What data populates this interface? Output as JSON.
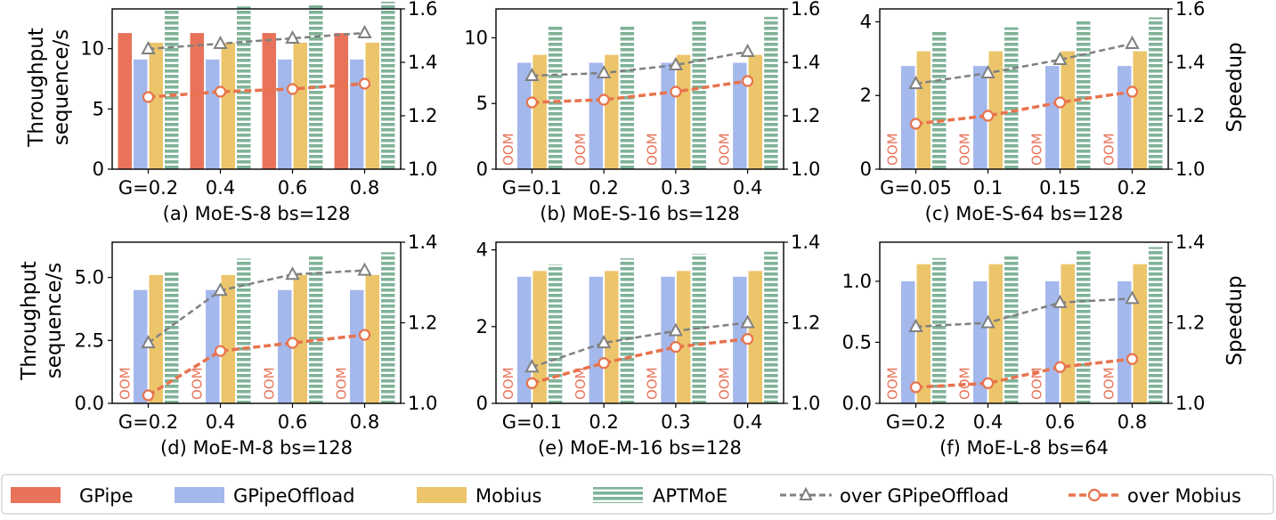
{
  "y_axis_label_lines": [
    "Throughput",
    "sequence/s"
  ],
  "right_axis_label": "Speedup",
  "oom_label": "OOM",
  "legend": [
    {
      "key": "gpipe",
      "label": "GPipe"
    },
    {
      "key": "gpipeoffload",
      "label": "GPipeOffload"
    },
    {
      "key": "mobius",
      "label": "Mobius"
    },
    {
      "key": "aptmoe",
      "label": "APTMoE"
    },
    {
      "key": "over_gpipeoffload",
      "label": "over GPipeOffload"
    },
    {
      "key": "over_mobius",
      "label": "over Mobius"
    }
  ],
  "colors": {
    "gpipe": "#e8735a",
    "gpipeoffload": "#a4b8ec",
    "mobius": "#ecc56b",
    "aptmoe": "#7fb398",
    "over_gpipeoffload": "#808080",
    "over_mobius": "#e8734d"
  },
  "chart_data": [
    {
      "type": "bar",
      "title": "(a) MoE-S-8 bs=128",
      "categories": [
        "G=0.2",
        "0.4",
        "0.6",
        "0.8"
      ],
      "ylim": [
        0,
        13.3
      ],
      "yticks": [
        0,
        5,
        10
      ],
      "y2lim": [
        1.0,
        1.6
      ],
      "y2ticks": [
        "1.0",
        "1.2",
        "1.4",
        "1.6"
      ],
      "y2tick_values": [
        1.0,
        1.2,
        1.4,
        1.6
      ],
      "series": [
        {
          "name": "GPipe",
          "values": [
            11.3,
            11.3,
            11.3,
            11.3
          ]
        },
        {
          "name": "GPipeOffload",
          "values": [
            9.1,
            9.1,
            9.1,
            9.1
          ]
        },
        {
          "name": "Mobius",
          "values": [
            10.5,
            10.5,
            10.5,
            10.5
          ]
        },
        {
          "name": "APTMoE",
          "values": [
            13.3,
            13.5,
            13.7,
            13.9
          ]
        }
      ],
      "speedup": [
        {
          "name": "over GPipeOffload",
          "values": [
            1.45,
            1.47,
            1.49,
            1.51
          ]
        },
        {
          "name": "over Mobius",
          "values": [
            1.27,
            1.29,
            1.3,
            1.32
          ]
        }
      ],
      "oom": [
        false,
        false,
        false,
        false
      ]
    },
    {
      "type": "bar",
      "title": "(b) MoE-S-16 bs=128",
      "categories": [
        "G=0.1",
        "0.2",
        "0.3",
        "0.4"
      ],
      "ylim": [
        0,
        12.2
      ],
      "yticks": [
        0,
        5,
        10
      ],
      "y2lim": [
        1.0,
        1.6
      ],
      "y2ticks": [
        "1.0",
        "1.2",
        "1.4",
        "1.6"
      ],
      "y2tick_values": [
        1.0,
        1.2,
        1.4,
        1.6
      ],
      "series": [
        {
          "name": "GPipe",
          "values": [
            null,
            null,
            null,
            null
          ]
        },
        {
          "name": "GPipeOffload",
          "values": [
            8.1,
            8.1,
            8.1,
            8.1
          ]
        },
        {
          "name": "Mobius",
          "values": [
            8.7,
            8.7,
            8.7,
            8.7
          ]
        },
        {
          "name": "APTMoE",
          "values": [
            11.0,
            11.0,
            11.3,
            11.6
          ]
        }
      ],
      "speedup": [
        {
          "name": "over GPipeOffload",
          "values": [
            1.35,
            1.36,
            1.39,
            1.44
          ]
        },
        {
          "name": "over Mobius",
          "values": [
            1.25,
            1.26,
            1.29,
            1.33
          ]
        }
      ],
      "oom": [
        true,
        true,
        true,
        true
      ]
    },
    {
      "type": "bar",
      "title": "(c) MoE-S-64 bs=128",
      "categories": [
        "G=0.05",
        "0.1",
        "0.15",
        "0.2"
      ],
      "ylim": [
        0,
        4.35
      ],
      "yticks": [
        0,
        2,
        4
      ],
      "y2lim": [
        1.0,
        1.6
      ],
      "y2ticks": [
        "1.0",
        "1.2",
        "1.4",
        "1.6"
      ],
      "y2tick_values": [
        1.0,
        1.2,
        1.4,
        1.6
      ],
      "series": [
        {
          "name": "GPipe",
          "values": [
            null,
            null,
            null,
            null
          ]
        },
        {
          "name": "GPipeOffload",
          "values": [
            2.8,
            2.8,
            2.8,
            2.8
          ]
        },
        {
          "name": "Mobius",
          "values": [
            3.2,
            3.2,
            3.2,
            3.2
          ]
        },
        {
          "name": "APTMoE",
          "values": [
            3.75,
            3.85,
            4.02,
            4.12
          ]
        }
      ],
      "speedup": [
        {
          "name": "over GPipeOffload",
          "values": [
            1.32,
            1.36,
            1.41,
            1.47
          ]
        },
        {
          "name": "over Mobius",
          "values": [
            1.17,
            1.2,
            1.25,
            1.29
          ]
        }
      ],
      "oom": [
        true,
        true,
        true,
        true
      ]
    },
    {
      "type": "bar",
      "title": "(d) MoE-M-8 bs=128",
      "categories": [
        "G=0.2",
        "0.4",
        "0.6",
        "0.8"
      ],
      "ylim": [
        0,
        6.4
      ],
      "yticks": [
        0.0,
        2.5,
        5.0
      ],
      "ytick_labels": [
        "0.0",
        "2.5",
        "5.0"
      ],
      "y2lim": [
        1.0,
        1.4
      ],
      "y2ticks": [
        "1.0",
        "1.2",
        "1.4"
      ],
      "y2tick_values": [
        1.0,
        1.2,
        1.4
      ],
      "series": [
        {
          "name": "GPipe",
          "values": [
            null,
            null,
            null,
            null
          ]
        },
        {
          "name": "GPipeOffload",
          "values": [
            4.5,
            4.5,
            4.5,
            4.5
          ]
        },
        {
          "name": "Mobius",
          "values": [
            5.1,
            5.1,
            5.1,
            5.1
          ]
        },
        {
          "name": "APTMoE",
          "values": [
            5.2,
            5.75,
            5.85,
            6.0
          ]
        }
      ],
      "speedup": [
        {
          "name": "over GPipeOffload",
          "values": [
            1.15,
            1.28,
            1.32,
            1.33
          ]
        },
        {
          "name": "over Mobius",
          "values": [
            1.02,
            1.13,
            1.15,
            1.17
          ]
        }
      ],
      "oom": [
        true,
        true,
        true,
        true
      ]
    },
    {
      "type": "bar",
      "title": "(e) MoE-M-16 bs=128",
      "categories": [
        "G=0.1",
        "0.2",
        "0.3",
        "0.4"
      ],
      "ylim": [
        0,
        4.2
      ],
      "yticks": [
        0,
        2,
        4
      ],
      "y2lim": [
        1.0,
        1.4
      ],
      "y2ticks": [
        "1.0",
        "1.2",
        "1.4"
      ],
      "y2tick_values": [
        1.0,
        1.2,
        1.4
      ],
      "series": [
        {
          "name": "GPipe",
          "values": [
            null,
            null,
            null,
            null
          ]
        },
        {
          "name": "GPipeOffload",
          "values": [
            3.3,
            3.3,
            3.3,
            3.3
          ]
        },
        {
          "name": "Mobius",
          "values": [
            3.45,
            3.45,
            3.45,
            3.45
          ]
        },
        {
          "name": "APTMoE",
          "values": [
            3.62,
            3.78,
            3.9,
            3.95
          ]
        }
      ],
      "speedup": [
        {
          "name": "over GPipeOffload",
          "values": [
            1.09,
            1.15,
            1.18,
            1.2
          ]
        },
        {
          "name": "over Mobius",
          "values": [
            1.05,
            1.1,
            1.14,
            1.16
          ]
        }
      ],
      "oom": [
        true,
        true,
        true,
        true
      ]
    },
    {
      "type": "bar",
      "title": "(f) MoE-L-8 bs=64",
      "categories": [
        "G=0.2",
        "0.4",
        "0.6",
        "0.8"
      ],
      "ylim": [
        0,
        1.32
      ],
      "yticks": [
        0.0,
        0.5,
        1.0
      ],
      "ytick_labels": [
        "0.0",
        "0.5",
        "1.0"
      ],
      "y2lim": [
        1.0,
        1.4
      ],
      "y2ticks": [
        "1.0",
        "1.2",
        "1.4"
      ],
      "y2tick_values": [
        1.0,
        1.2,
        1.4
      ],
      "series": [
        {
          "name": "GPipe",
          "values": [
            null,
            null,
            null,
            null
          ]
        },
        {
          "name": "GPipeOffload",
          "values": [
            1.0,
            1.0,
            1.0,
            1.0
          ]
        },
        {
          "name": "Mobius",
          "values": [
            1.14,
            1.14,
            1.14,
            1.14
          ]
        },
        {
          "name": "APTMoE",
          "values": [
            1.19,
            1.22,
            1.25,
            1.28
          ]
        }
      ],
      "speedup": [
        {
          "name": "over GPipeOffload",
          "values": [
            1.19,
            1.2,
            1.25,
            1.26
          ]
        },
        {
          "name": "over Mobius",
          "values": [
            1.04,
            1.05,
            1.09,
            1.11
          ]
        }
      ],
      "oom": [
        true,
        true,
        true,
        true
      ]
    }
  ]
}
